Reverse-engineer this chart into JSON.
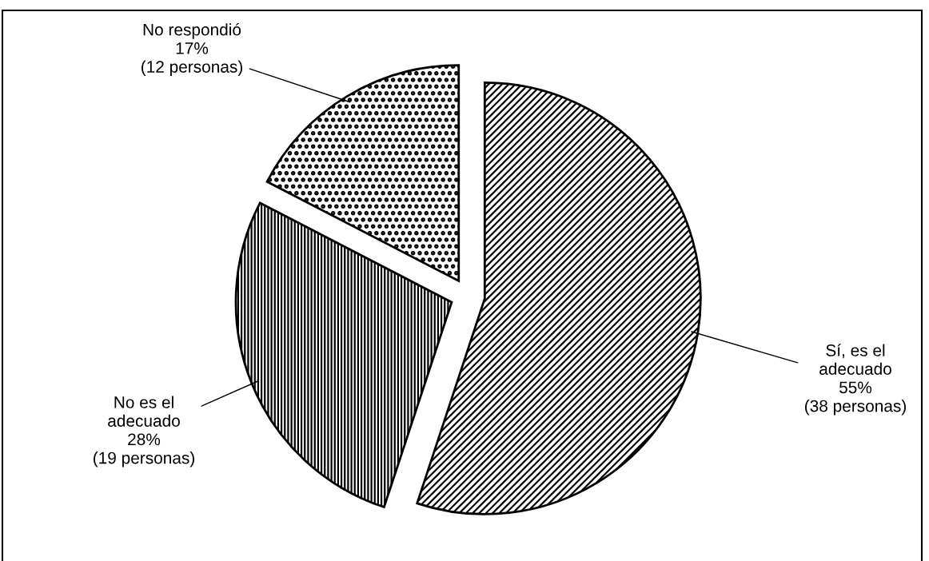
{
  "chart_data": {
    "type": "pie",
    "categories": [
      "Sí, es el\nadecuado",
      "No es el\nadecuado",
      "No respondió"
    ],
    "values": [
      38,
      19,
      12
    ],
    "value_labels": [
      "55%\n(38 personas)",
      "28%\n(19 personas)",
      "17%\n(12 personas)"
    ],
    "colors": [
      "#000000",
      "#000000",
      "#000000"
    ],
    "legend": false
  }
}
